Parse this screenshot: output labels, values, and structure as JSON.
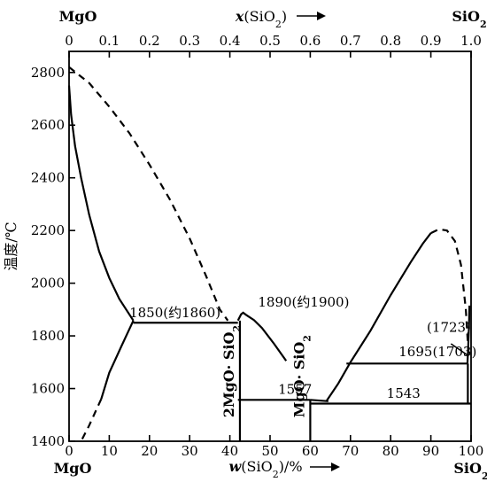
{
  "chart_data": {
    "type": "phase-diagram",
    "system": [
      "MgO",
      "SiO2"
    ],
    "top_axis": {
      "label_prefix": "x(SiO",
      "label_sub": "2",
      "label_suffix": ")",
      "ticks": [
        "0",
        "0.1",
        "0.2",
        "0.3",
        "0.4",
        "0.5",
        "0.6",
        "0.7",
        "0.8",
        "0.9",
        "1.0"
      ],
      "tick_values": [
        0,
        0.1,
        0.2,
        0.3,
        0.4,
        0.5,
        0.6,
        0.7,
        0.8,
        0.9,
        1.0
      ],
      "left_end": "MgO",
      "right_end": "SiO2"
    },
    "bottom_axis": {
      "label_main": "w(SiO",
      "label_sub": "2",
      "label_suffix": ")/%",
      "ticks": [
        "0",
        "10",
        "20",
        "30",
        "40",
        "50",
        "60",
        "70",
        "80",
        "90",
        "100"
      ],
      "tick_values": [
        0,
        10,
        20,
        30,
        40,
        50,
        60,
        70,
        80,
        90,
        100
      ],
      "left_end": "MgO",
      "right_end": "SiO2",
      "xlim": [
        0,
        100
      ]
    },
    "y_axis": {
      "label": "温度/℃",
      "ticks": [
        "1400",
        "1600",
        "1800",
        "2000",
        "2200",
        "2400",
        "2600",
        "2800"
      ],
      "tick_values": [
        1400,
        1600,
        1800,
        2000,
        2200,
        2400,
        2600,
        2800
      ],
      "ylim": [
        1400,
        2880
      ]
    },
    "annotations": [
      {
        "text": "1850(约1860)",
        "x": 15,
        "y": 1858
      },
      {
        "text": "1890(约1900)",
        "x": 47,
        "y": 1898
      },
      {
        "text": "1557",
        "x": 52,
        "y": 1566
      },
      {
        "text": "1543",
        "x": 79,
        "y": 1551
      },
      {
        "text": "1695(1703)",
        "x": 82,
        "y": 1710
      },
      {
        "text": "(1723)",
        "x": 89,
        "y": 1802
      }
    ],
    "phases": [
      {
        "main": "2MgO",
        "sep": "·",
        "tail": "SiO",
        "sub": "2",
        "w": 41
      },
      {
        "main": "MgO",
        "sep": "·",
        "tail": "SiO",
        "sub": "2",
        "w": 58.5
      }
    ],
    "invariant_lines": [
      {
        "t": 1850,
        "w_from": 16,
        "w_to": 42
      },
      {
        "t": 1557,
        "w_from": 42,
        "w_to": 60
      },
      {
        "t": 1543,
        "w_from": 60,
        "w_to": 100
      },
      {
        "t": 1695,
        "w_from": 69,
        "w_to": 99
      }
    ],
    "curves": {
      "mgo_liquidus": [
        [
          0,
          2750
        ],
        [
          0.5,
          2640
        ],
        [
          1.5,
          2520
        ],
        [
          3,
          2400
        ],
        [
          5,
          2260
        ],
        [
          7.5,
          2120
        ],
        [
          10,
          2020
        ],
        [
          12.5,
          1940
        ],
        [
          16,
          1858
        ]
      ],
      "mgo_solidus": [
        [
          16,
          1858
        ],
        [
          13,
          1760
        ],
        [
          10,
          1660
        ],
        [
          8,
          1560
        ]
      ],
      "mgo_solidus_dashed": [
        [
          8,
          1560
        ],
        [
          5,
          1460
        ],
        [
          3,
          1400
        ]
      ],
      "mgo_melting_dashed": [
        [
          0,
          2820
        ],
        [
          5,
          2760
        ],
        [
          10,
          2670
        ],
        [
          15,
          2570
        ],
        [
          20,
          2450
        ],
        [
          25,
          2320
        ],
        [
          30,
          2170
        ],
        [
          34,
          2030
        ],
        [
          37.5,
          1900
        ],
        [
          39.5,
          1858
        ]
      ],
      "forsterite_dome": [
        [
          42,
          1858
        ],
        [
          42.8,
          1882
        ],
        [
          43.3,
          1888
        ],
        [
          44,
          1880
        ],
        [
          46,
          1860
        ],
        [
          48,
          1830
        ],
        [
          51,
          1770
        ],
        [
          54,
          1705
        ]
      ],
      "cristobalite_liquidus": [
        [
          64,
          1552
        ],
        [
          67,
          1620
        ],
        [
          70,
          1700
        ],
        [
          75,
          1820
        ],
        [
          80,
          1955
        ],
        [
          85,
          2080
        ],
        [
          88,
          2150
        ],
        [
          90,
          2190
        ],
        [
          92,
          2205
        ],
        [
          94,
          2200
        ],
        [
          96,
          2160
        ],
        [
          97.5,
          2070
        ],
        [
          98.7,
          1900
        ],
        [
          99.2,
          1770
        ],
        [
          99.5,
          1722
        ]
      ],
      "silica_liquidus": [
        [
          99.1,
          1695
        ],
        [
          99.3,
          1760
        ],
        [
          99.5,
          1840
        ],
        [
          99.6,
          1915
        ]
      ]
    }
  }
}
